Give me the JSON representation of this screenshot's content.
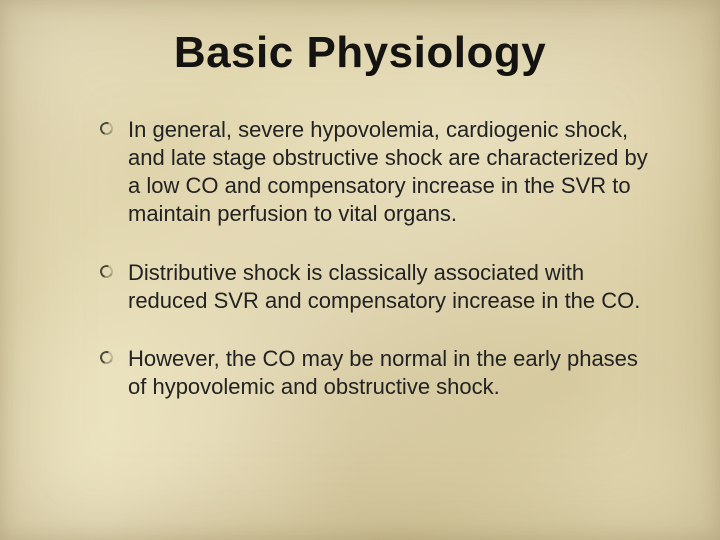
{
  "slide": {
    "title": "Basic Physiology",
    "title_fontsize": 44,
    "body_fontsize": 22,
    "background_base": "#e8dfb9",
    "text_color": "#1a1a1a",
    "bullet_ring_color": "#4a4a3a",
    "bullets": [
      "In general, severe hypovolemia, cardiogenic shock, and late stage obstructive shock are characterized by a low CO and compensatory increase in the SVR to maintain perfusion to vital organs.",
      "Distributive shock is classically associated with reduced SVR and compensatory increase in the CO.",
      "However, the CO may be normal in the early phases of hypovolemic and obstructive shock."
    ]
  }
}
